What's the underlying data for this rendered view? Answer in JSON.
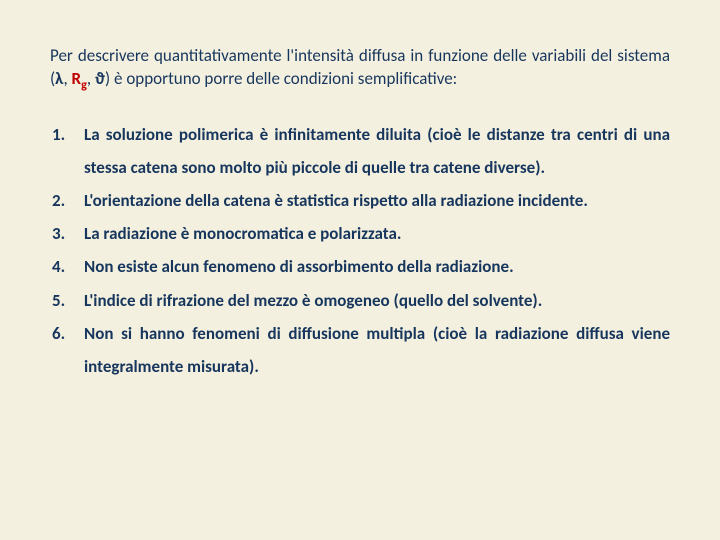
{
  "colors": {
    "background": "#f4f0df",
    "text": "#17365d",
    "accent": "#c00000"
  },
  "typography": {
    "body_fontsize_pt": 13,
    "list_fontsize_pt": 13,
    "line_height_list": 1.95,
    "align": "justify"
  },
  "intro": {
    "pre": "Per descrivere quantitativamente l'intensità diffusa in funzione delle variabili del sistema (",
    "sym_lambda": "λ",
    "sep1": ", ",
    "sym_R": "R",
    "sym_R_sub": "g",
    "sep2": ", ",
    "sym_theta": "ϑ",
    "post": ") è opportuno porre delle condizioni semplificative:"
  },
  "conditions": [
    "La soluzione polimerica è infinitamente diluita (cioè le distanze tra centri di una stessa catena sono molto più piccole di quelle tra catene diverse).",
    "L'orientazione della catena è statistica rispetto alla radiazione incidente.",
    "La radiazione è monocromatica e polarizzata.",
    "Non esiste alcun fenomeno di assorbimento della radiazione.",
    "L'indice di rifrazione del mezzo è omogeneo (quello del solvente).",
    "Non si hanno fenomeni di diffusione multipla (cioè la radiazione diffusa viene integralmente misurata)."
  ]
}
